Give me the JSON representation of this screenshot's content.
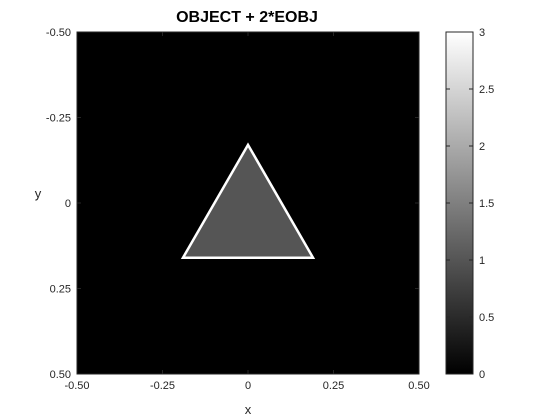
{
  "chart_data": {
    "type": "heatmap",
    "title": "OBJECT + 2*EOBJ",
    "xlabel": "x",
    "ylabel": "y",
    "xlim": [
      -0.5,
      0.5
    ],
    "ylim": [
      -0.5,
      0.5
    ],
    "y_direction": "reversed",
    "grid": false,
    "xticks": [
      -0.5,
      -0.25,
      0,
      0.25,
      0.5
    ],
    "xtick_labels": [
      "-0.50",
      "-0.25",
      "0",
      "0.25",
      "0.50"
    ],
    "yticks": [
      -0.5,
      -0.25,
      0,
      0.25,
      0.5
    ],
    "ytick_labels": [
      "-0.50",
      "-0.25",
      "0",
      "0.25",
      "0.50"
    ],
    "background_value": 0,
    "regions": [
      {
        "name": "triangle-interior",
        "value": 1,
        "vertices": [
          [
            0,
            -0.17
          ],
          [
            -0.19,
            0.16
          ],
          [
            0.19,
            0.16
          ]
        ]
      },
      {
        "name": "triangle-edge",
        "value": 3,
        "vertices": [
          [
            0,
            -0.17
          ],
          [
            -0.19,
            0.16
          ],
          [
            0.19,
            0.16
          ]
        ]
      }
    ],
    "colorbar": {
      "colormap": "gray",
      "range": [
        0,
        3
      ],
      "ticks": [
        0,
        0.5,
        1,
        1.5,
        2,
        2.5,
        3
      ],
      "tick_labels": [
        "0",
        "0.5",
        "1",
        "1.5",
        "2",
        "2.5",
        "3"
      ]
    }
  },
  "colors": {
    "background": "#000000",
    "interior": "#555555",
    "edge": "#ffffff",
    "axis": "#262626"
  }
}
